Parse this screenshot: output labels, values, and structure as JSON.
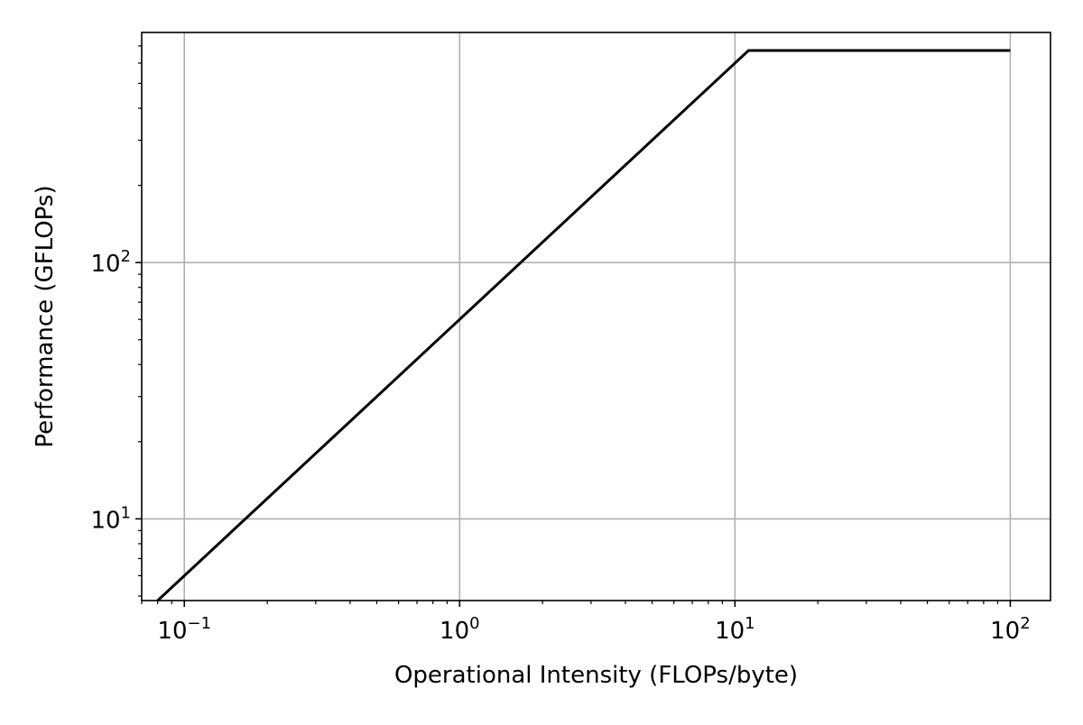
{
  "chart_data": {
    "type": "line",
    "title": "",
    "xlabel": "Operational Intensity (FLOPs/byte)",
    "ylabel": "Performance (GFLOPs)",
    "xscale": "log",
    "yscale": "log",
    "xlim": [
      0.07,
      140
    ],
    "ylim": [
      4.8,
      790
    ],
    "grid": true,
    "legend": "none",
    "x_ticks": [
      {
        "value": 0.1,
        "base": "10",
        "exp": "−1"
      },
      {
        "value": 1,
        "base": "10",
        "exp": "0"
      },
      {
        "value": 10,
        "base": "10",
        "exp": "1"
      },
      {
        "value": 100,
        "base": "10",
        "exp": "2"
      }
    ],
    "y_ticks": [
      {
        "value": 10,
        "base": "10",
        "exp": "1"
      },
      {
        "value": 100,
        "base": "10",
        "exp": "2"
      }
    ],
    "series": [
      {
        "color": "#000000",
        "x": [
          0.08,
          11.2,
          100
        ],
        "y": [
          4.8,
          672,
          672
        ]
      }
    ]
  }
}
